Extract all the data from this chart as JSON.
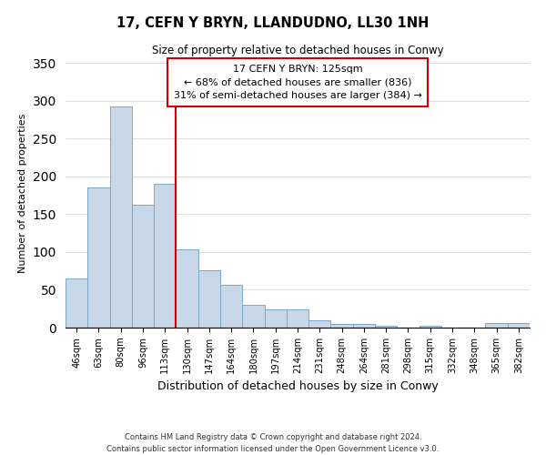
{
  "title": "17, CEFN Y BRYN, LLANDUDNO, LL30 1NH",
  "subtitle": "Size of property relative to detached houses in Conwy",
  "xlabel": "Distribution of detached houses by size in Conwy",
  "ylabel": "Number of detached properties",
  "bar_color": "#c8d8e8",
  "bar_edge_color": "#7aa8c8",
  "vline_color": "#cc0000",
  "vline_x_idx": 4,
  "bins": [
    "46sqm",
    "63sqm",
    "80sqm",
    "96sqm",
    "113sqm",
    "130sqm",
    "147sqm",
    "164sqm",
    "180sqm",
    "197sqm",
    "214sqm",
    "231sqm",
    "248sqm",
    "264sqm",
    "281sqm",
    "298sqm",
    "315sqm",
    "332sqm",
    "348sqm",
    "365sqm",
    "382sqm"
  ],
  "values": [
    65,
    185,
    293,
    163,
    190,
    103,
    76,
    57,
    30,
    24,
    24,
    10,
    5,
    5,
    3,
    0,
    3,
    0,
    0,
    6,
    6
  ],
  "ylim": [
    0,
    355
  ],
  "yticks": [
    0,
    50,
    100,
    150,
    200,
    250,
    300,
    350
  ],
  "annotation_title": "17 CEFN Y BRYN: 125sqm",
  "annotation_line1": "← 68% of detached houses are smaller (836)",
  "annotation_line2": "31% of semi-detached houses are larger (384) →",
  "footnote1": "Contains HM Land Registry data © Crown copyright and database right 2024.",
  "footnote2": "Contains public sector information licensed under the Open Government Licence v3.0.",
  "fig_width": 6.0,
  "fig_height": 5.0,
  "dpi": 100
}
